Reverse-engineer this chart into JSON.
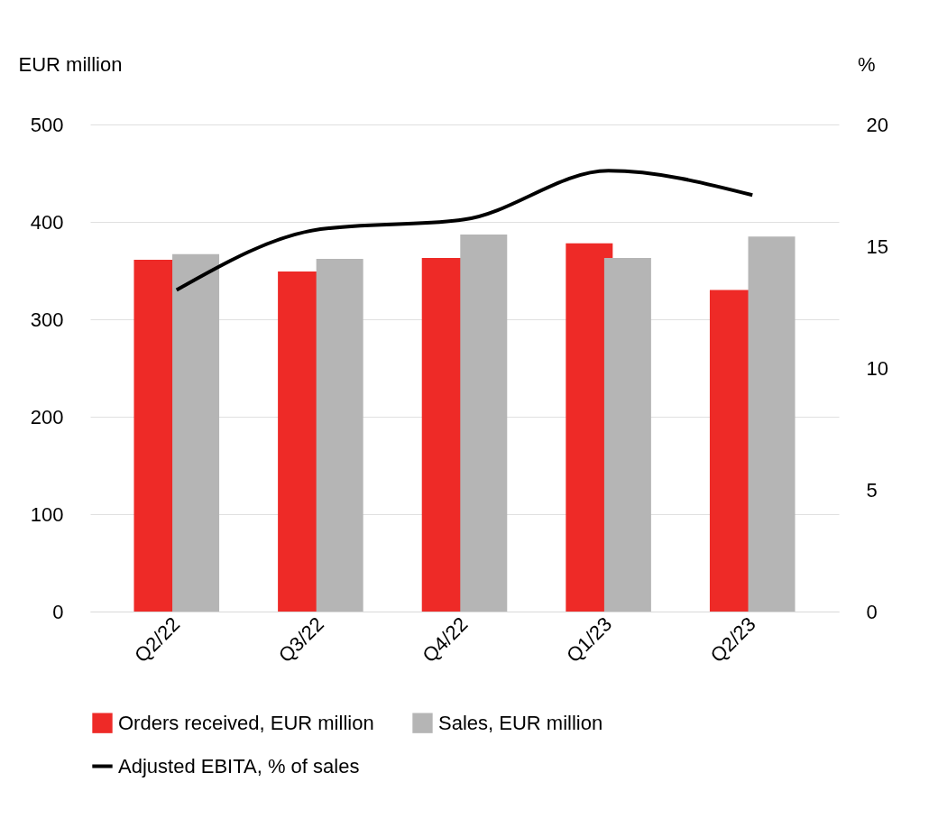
{
  "chart_data": {
    "type": "bar",
    "ylabel": "EUR million",
    "y2label": "%",
    "categories": [
      "Q2/22",
      "Q3/22",
      "Q4/22",
      "Q1/23",
      "Q2/23"
    ],
    "series": [
      {
        "name": "Orders received, EUR million",
        "color": "#ee2a27",
        "values": [
          361,
          349,
          363,
          378,
          330
        ]
      },
      {
        "name": "Sales, EUR million",
        "color": "#b5b5b5",
        "values": [
          367,
          362,
          387,
          363,
          385
        ]
      },
      {
        "name": "Adjusted EBITA, % of sales",
        "type": "line",
        "axis": "y2",
        "color": "#000000",
        "values": [
          13.2,
          15.7,
          16.1,
          18.1,
          17.1
        ]
      }
    ],
    "ylim": [
      0,
      500
    ],
    "yticks": [
      0,
      100,
      200,
      300,
      400,
      500
    ],
    "y2lim": [
      0,
      20
    ],
    "y2ticks": [
      0,
      5,
      10,
      15,
      20
    ],
    "grid": "y",
    "legend": "bottom",
    "line_style": "solid",
    "marker": "none"
  }
}
